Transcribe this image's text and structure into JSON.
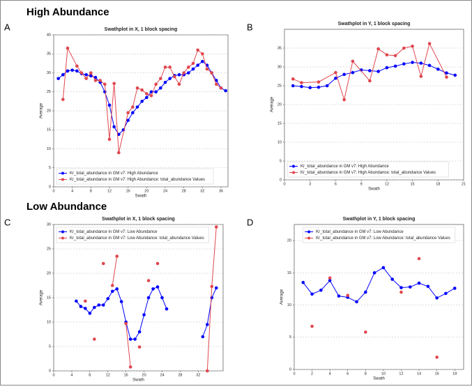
{
  "headings": [
    "High Abundance",
    "Low Abundance"
  ],
  "panel_labels": [
    "A",
    "B",
    "C",
    "D"
  ],
  "chart_data": [
    {
      "type": "line",
      "title": "Swathplot in X, 1 block spacing",
      "x_label": "Swath",
      "y_label": "Average",
      "xlim": [
        0,
        37.5
      ],
      "xticks": [
        0,
        4,
        8,
        12,
        16,
        20,
        24,
        28,
        32,
        36
      ],
      "ylim": [
        0,
        40
      ],
      "yticks": [
        0,
        5,
        10,
        15,
        20,
        25,
        30,
        35,
        40
      ],
      "grid": true,
      "legend": "lower left",
      "series": [
        {
          "name": "Kr_total_abundance in GM v7: High Abundance",
          "color": "#0000ff",
          "x": [
            1,
            2,
            3,
            4,
            5,
            6,
            7,
            8,
            9,
            10,
            11,
            12,
            13,
            14,
            15,
            16,
            17,
            18,
            19,
            20,
            21,
            22,
            23,
            24,
            25,
            26,
            27,
            28,
            29,
            30,
            31,
            32,
            33,
            34,
            35,
            36,
            37
          ],
          "values": [
            28.5,
            29.5,
            30.5,
            30.7,
            30.5,
            29.8,
            29.5,
            29.2,
            28.8,
            27.5,
            25,
            21.5,
            15.8,
            13.8,
            15,
            17.5,
            19.5,
            21,
            22.5,
            23.5,
            25,
            25,
            26,
            27.5,
            28.5,
            29.3,
            29.5,
            29.5,
            30,
            31,
            32,
            33,
            32,
            30,
            28,
            26,
            25.3
          ]
        },
        {
          "name": "Kr_total_abundance in GM v7: High Abundance: total_abundance Values",
          "color": "#e0464e",
          "x": [
            2,
            3,
            5,
            6,
            7,
            8,
            9,
            10,
            11,
            12,
            13,
            14,
            16,
            17,
            18,
            19,
            20,
            21,
            22,
            23,
            24,
            25,
            26,
            27,
            28,
            29,
            30,
            31,
            32,
            33,
            34,
            35,
            36
          ],
          "values": [
            23,
            36.5,
            31.8,
            30,
            28.5,
            30,
            28,
            28,
            27,
            12.5,
            27.2,
            9,
            19.5,
            21,
            26,
            25.5,
            24.5,
            24,
            27,
            28.5,
            31.5,
            31.5,
            29,
            27,
            30,
            31.5,
            32.5,
            36,
            35,
            31,
            30,
            27,
            26
          ]
        }
      ]
    },
    {
      "type": "line",
      "title": "Swathplot in Y, 1 block spacing",
      "x_label": "Swath",
      "y_label": "Average",
      "xlim": [
        0,
        21
      ],
      "xticks": [
        0,
        3,
        6,
        9,
        12,
        15,
        18,
        21
      ],
      "ylim": [
        0,
        40
      ],
      "yticks": [
        0,
        5,
        10,
        15,
        20,
        25,
        30,
        35
      ],
      "grid": true,
      "legend": "lower left",
      "series": [
        {
          "name": "Kr_total_abundance in GM v7: High Abundance",
          "color": "#0000ff",
          "x": [
            1,
            2,
            3,
            4,
            5,
            6,
            7,
            8,
            9,
            10,
            11,
            12,
            13,
            14,
            15,
            16,
            17,
            18,
            19,
            20
          ],
          "values": [
            25,
            24.8,
            24.5,
            24.6,
            25,
            27,
            28,
            28.5,
            29.2,
            29,
            28.8,
            29.8,
            30.2,
            30.8,
            31.2,
            31,
            30.4,
            29.4,
            28.4,
            27.8
          ]
        },
        {
          "name": "Kr_total_abundance in GM v7: High Abundance: total_abundance Values",
          "color": "#e0464e",
          "x": [
            1,
            2,
            4,
            6,
            7,
            8,
            10,
            11,
            12,
            13,
            14,
            15,
            16,
            17,
            19
          ],
          "values": [
            26.8,
            25.8,
            26,
            28.5,
            21.3,
            31.5,
            26.3,
            34.8,
            33.2,
            33,
            35,
            35.5,
            27.5,
            36.2,
            27.3
          ]
        }
      ]
    },
    {
      "type": "line",
      "title": "Swathplot in X, 1 block spacing",
      "x_label": "Swath",
      "y_label": "Average",
      "xlim": [
        0,
        37.5
      ],
      "xticks": [
        0,
        4,
        8,
        12,
        16,
        20,
        24,
        28,
        32
      ],
      "ylim": [
        0,
        30
      ],
      "yticks": [
        0,
        5,
        10,
        15,
        20,
        25,
        30
      ],
      "grid": true,
      "legend": "upper left",
      "series": [
        {
          "name": "Kr_total_abundance in GM v7: Low Abundance",
          "color": "#0000ff",
          "x": [
            5,
            6,
            7,
            8,
            9,
            10,
            11,
            12,
            13,
            14,
            15,
            16,
            17,
            18,
            19,
            20,
            21,
            22,
            23,
            24,
            25,
            26,
            27,
            28,
            29,
            30,
            31,
            32,
            33,
            34,
            35,
            36
          ],
          "values": [
            14.3,
            13.2,
            12.8,
            11.8,
            13,
            13.5,
            13.5,
            14.8,
            16.3,
            16.8,
            14.2,
            10,
            6.5,
            6.5,
            8,
            11.5,
            15,
            16.8,
            17.2,
            15,
            12.7,
            null,
            null,
            null,
            null,
            null,
            null,
            null,
            7,
            9.5,
            15,
            17
          ]
        },
        {
          "name": "Kr_total_abundance in GM v7: Low Abundance: total_abundance Values",
          "color": "#e0464e",
          "x": [
            7,
            8,
            9,
            10,
            11,
            12,
            13,
            14,
            15,
            16,
            17,
            18,
            19,
            20,
            21,
            22,
            23,
            24,
            25,
            26,
            27,
            28,
            29,
            30,
            31,
            32,
            33,
            34,
            35,
            36
          ],
          "values": [
            14.3,
            null,
            6.5,
            null,
            22,
            null,
            17.5,
            23.5,
            null,
            9.7,
            0.8,
            null,
            4.9,
            null,
            18.5,
            null,
            22,
            null,
            null,
            null,
            null,
            null,
            null,
            null,
            null,
            null,
            null,
            0,
            17.3,
            29.5
          ]
        }
      ]
    },
    {
      "type": "line",
      "title": "Swathplot in Y, 1 block spacing",
      "x_label": "Swath",
      "y_label": "Average",
      "xlim": [
        0,
        19
      ],
      "xticks": [
        0,
        2,
        4,
        6,
        8,
        10,
        12,
        14,
        16,
        18
      ],
      "ylim": [
        0,
        22.5
      ],
      "yticks": [
        0,
        5,
        10,
        15,
        20
      ],
      "grid": true,
      "legend": "upper center",
      "series": [
        {
          "name": "Kr_total_abundance in GM v7: Low Abundance",
          "color": "#0000ff",
          "x": [
            1,
            2,
            3,
            4,
            5,
            6,
            7,
            8,
            9,
            10,
            11,
            12,
            13,
            14,
            15,
            16,
            17,
            18
          ],
          "values": [
            13.5,
            11.7,
            12.3,
            13.8,
            11.4,
            11.2,
            10.5,
            12,
            15,
            15.8,
            14,
            12.7,
            12.8,
            13.4,
            12.9,
            11.1,
            11.8,
            12.6
          ]
        },
        {
          "name": "Kr_total_abundance in GM v7: Low Abundance: total_abundance Values",
          "color": "#e0464e",
          "x": [
            2,
            3,
            4,
            5,
            6,
            7,
            8,
            9,
            10,
            11,
            12,
            13,
            14,
            15,
            16
          ],
          "values": [
            6.7,
            null,
            14.2,
            null,
            11.5,
            null,
            5.8,
            null,
            null,
            null,
            12,
            null,
            17.2,
            null,
            1.9
          ]
        }
      ]
    }
  ]
}
